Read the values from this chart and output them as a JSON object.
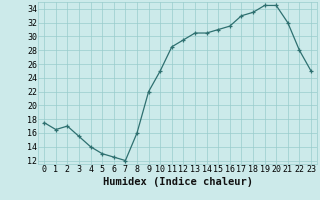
{
  "x": [
    0,
    1,
    2,
    3,
    4,
    5,
    6,
    7,
    8,
    9,
    10,
    11,
    12,
    13,
    14,
    15,
    16,
    17,
    18,
    19,
    20,
    21,
    22,
    23
  ],
  "y": [
    17.5,
    16.5,
    17,
    15.5,
    14,
    13,
    12.5,
    12,
    16,
    22,
    25,
    28.5,
    29.5,
    30.5,
    30.5,
    31,
    31.5,
    33,
    33.5,
    34.5,
    34.5,
    32,
    28,
    25
  ],
  "xlabel": "Humidex (Indice chaleur)",
  "xlim": [
    -0.5,
    23.5
  ],
  "ylim": [
    11.5,
    35.0
  ],
  "yticks": [
    12,
    14,
    16,
    18,
    20,
    22,
    24,
    26,
    28,
    30,
    32,
    34
  ],
  "xticks": [
    0,
    1,
    2,
    3,
    4,
    5,
    6,
    7,
    8,
    9,
    10,
    11,
    12,
    13,
    14,
    15,
    16,
    17,
    18,
    19,
    20,
    21,
    22,
    23
  ],
  "line_color": "#2e7070",
  "bg_color": "#cceaea",
  "grid_color": "#99cccc",
  "spine_color": "#99cccc",
  "xlabel_fontsize": 7.5,
  "tick_fontsize": 6.0
}
